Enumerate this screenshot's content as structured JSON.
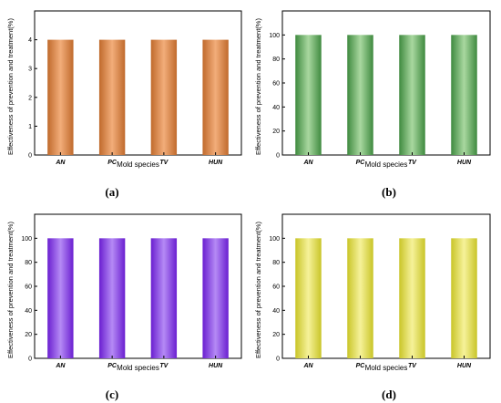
{
  "chart_data": [
    {
      "type": "bar",
      "panel_label": "(a)",
      "categories": [
        "AN",
        "PC",
        "TV",
        "HUN"
      ],
      "values": [
        4,
        4,
        4,
        4
      ],
      "xlabel": "Mold species",
      "ylabel": "Effectiveness of prevention and treatment(%)",
      "ylim": [
        0,
        5
      ],
      "yticks": [
        0,
        1,
        2,
        3,
        4
      ],
      "grid": false,
      "colors": {
        "edge": "#c06a2c",
        "mid": "#f2ad7a"
      }
    },
    {
      "type": "bar",
      "panel_label": "(b)",
      "categories": [
        "AN",
        "PC",
        "TV",
        "HUN"
      ],
      "values": [
        100,
        100,
        100,
        100
      ],
      "xlabel": "Mold species",
      "ylabel": "Effectiveness of prevention and treatment(%)",
      "ylim": [
        0,
        120
      ],
      "yticks": [
        0,
        20,
        40,
        60,
        80,
        100
      ],
      "grid": false,
      "colors": {
        "edge": "#3f8a3f",
        "mid": "#a9d8a0"
      }
    },
    {
      "type": "bar",
      "panel_label": "(c)",
      "categories": [
        "AN",
        "PC",
        "TV",
        "HUN"
      ],
      "values": [
        100,
        100,
        100,
        100
      ],
      "xlabel": "Mold species",
      "ylabel": "Effectiveness of prevention and treatment(%)",
      "ylim": [
        0,
        120
      ],
      "yticks": [
        0,
        20,
        40,
        60,
        80,
        100
      ],
      "grid": false,
      "colors": {
        "edge": "#6a1fd0",
        "mid": "#b58af5"
      }
    },
    {
      "type": "bar",
      "panel_label": "(d)",
      "categories": [
        "AN",
        "PC",
        "TV",
        "HUN"
      ],
      "values": [
        100,
        100,
        100,
        100
      ],
      "xlabel": "Mold species",
      "ylabel": "Effectiveness of prevention and treatment(%)",
      "ylim": [
        0,
        120
      ],
      "yticks": [
        0,
        20,
        40,
        60,
        80,
        100
      ],
      "grid": false,
      "colors": {
        "edge": "#c9c528",
        "mid": "#f6f29a"
      }
    }
  ]
}
